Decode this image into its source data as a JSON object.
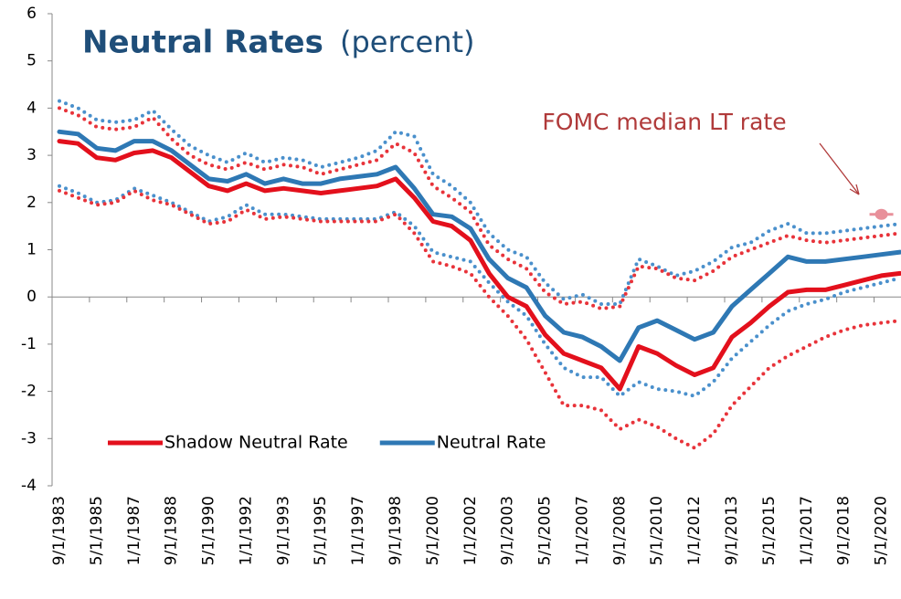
{
  "chart_data": {
    "type": "line",
    "title": "Neutral Rates",
    "subtitle": "(percent)",
    "annotation": "FOMC median LT rate",
    "fomc_median": {
      "value": 1.75,
      "color": "#e8909a"
    },
    "categories": [
      "9/1/1983",
      null,
      "5/1/1985",
      null,
      "1/1/1987",
      null,
      "9/1/1988",
      null,
      "5/1/1990",
      null,
      "1/1/1992",
      null,
      "9/1/1993",
      null,
      "5/1/1995",
      null,
      "1/1/1997",
      null,
      "9/1/1998",
      null,
      "5/1/2000",
      null,
      "1/1/2002",
      null,
      "9/1/2003",
      null,
      "5/1/2005",
      null,
      "1/1/2007",
      null,
      "9/1/2008",
      null,
      "5/1/2010",
      null,
      "1/1/2012",
      null,
      "9/1/2013",
      null,
      "5/1/2015",
      null,
      "1/1/2017",
      null,
      "9/1/2018",
      null,
      "5/1/2020",
      null
    ],
    "ylim": [
      -4,
      6
    ],
    "yticks": [
      -4,
      -3,
      -2,
      -1,
      0,
      1,
      2,
      3,
      4,
      5,
      6
    ],
    "legend": "lower-left",
    "series": [
      {
        "style": "dotted",
        "color": "#4a90cc",
        "values": [
          4.15,
          4.0,
          3.75,
          3.7,
          3.75,
          3.95,
          3.55,
          3.2,
          3.0,
          2.85,
          3.05,
          2.85,
          2.95,
          2.9,
          2.75,
          2.85,
          2.95,
          3.1,
          3.5,
          3.4,
          2.6,
          2.35,
          2.0,
          1.35,
          1.0,
          0.85,
          0.3,
          -0.05,
          0.05,
          -0.15,
          -0.15,
          0.8,
          0.65,
          0.45,
          0.55,
          0.75,
          1.05,
          1.15,
          1.4,
          1.55,
          1.35,
          1.35,
          1.4,
          1.45,
          1.5,
          1.55
        ]
      },
      {
        "style": "dotted",
        "color": "#4a90cc",
        "values": [
          2.35,
          2.2,
          2.0,
          2.05,
          2.3,
          2.15,
          2.0,
          1.8,
          1.6,
          1.7,
          1.95,
          1.75,
          1.75,
          1.7,
          1.65,
          1.65,
          1.65,
          1.65,
          1.8,
          1.5,
          0.95,
          0.85,
          0.75,
          0.3,
          -0.1,
          -0.4,
          -1.0,
          -1.5,
          -1.7,
          -1.7,
          -2.1,
          -1.8,
          -1.95,
          -2.0,
          -2.1,
          -1.8,
          -1.3,
          -0.95,
          -0.6,
          -0.3,
          -0.15,
          -0.05,
          0.1,
          0.2,
          0.3,
          0.4
        ]
      },
      {
        "style": "dotted",
        "color": "#e8333a",
        "values": [
          4.0,
          3.85,
          3.6,
          3.55,
          3.6,
          3.8,
          3.35,
          3.0,
          2.8,
          2.7,
          2.85,
          2.7,
          2.8,
          2.75,
          2.6,
          2.7,
          2.8,
          2.9,
          3.25,
          3.05,
          2.35,
          2.1,
          1.8,
          1.1,
          0.8,
          0.6,
          0.1,
          -0.15,
          -0.1,
          -0.25,
          -0.2,
          0.65,
          0.6,
          0.4,
          0.35,
          0.55,
          0.85,
          1.0,
          1.15,
          1.3,
          1.2,
          1.15,
          1.2,
          1.25,
          1.3,
          1.35
        ]
      },
      {
        "style": "dotted",
        "color": "#e8333a",
        "values": [
          2.25,
          2.1,
          1.95,
          2.0,
          2.25,
          2.05,
          1.95,
          1.75,
          1.55,
          1.6,
          1.85,
          1.65,
          1.7,
          1.65,
          1.6,
          1.6,
          1.6,
          1.6,
          1.75,
          1.35,
          0.75,
          0.65,
          0.5,
          0.0,
          -0.4,
          -0.9,
          -1.6,
          -2.3,
          -2.3,
          -2.4,
          -2.8,
          -2.6,
          -2.75,
          -3.0,
          -3.2,
          -2.9,
          -2.3,
          -1.9,
          -1.5,
          -1.25,
          -1.05,
          -0.85,
          -0.7,
          -0.6,
          -0.55,
          -0.5
        ]
      },
      {
        "name": "Neutral Rate",
        "style": "solid",
        "color": "#2e78b4",
        "values": [
          3.5,
          3.45,
          3.15,
          3.1,
          3.3,
          3.3,
          3.1,
          2.8,
          2.5,
          2.45,
          2.6,
          2.4,
          2.5,
          2.4,
          2.4,
          2.5,
          2.55,
          2.6,
          2.75,
          2.3,
          1.75,
          1.7,
          1.45,
          0.8,
          0.4,
          0.2,
          -0.4,
          -0.75,
          -0.85,
          -1.05,
          -1.35,
          -0.65,
          -0.5,
          -0.7,
          -0.9,
          -0.75,
          -0.2,
          0.15,
          0.5,
          0.85,
          0.75,
          0.75,
          0.8,
          0.85,
          0.9,
          0.95
        ]
      },
      {
        "name": "Shadow Neutral Rate",
        "style": "solid",
        "color": "#e3101c",
        "values": [
          3.3,
          3.25,
          2.95,
          2.9,
          3.05,
          3.1,
          2.95,
          2.65,
          2.35,
          2.25,
          2.4,
          2.25,
          2.3,
          2.25,
          2.2,
          2.25,
          2.3,
          2.35,
          2.5,
          2.1,
          1.6,
          1.5,
          1.2,
          0.5,
          0.0,
          -0.2,
          -0.8,
          -1.2,
          -1.35,
          -1.5,
          -1.95,
          -1.05,
          -1.2,
          -1.45,
          -1.65,
          -1.5,
          -0.85,
          -0.55,
          -0.2,
          0.1,
          0.15,
          0.15,
          0.25,
          0.35,
          0.45,
          0.5
        ]
      }
    ]
  }
}
